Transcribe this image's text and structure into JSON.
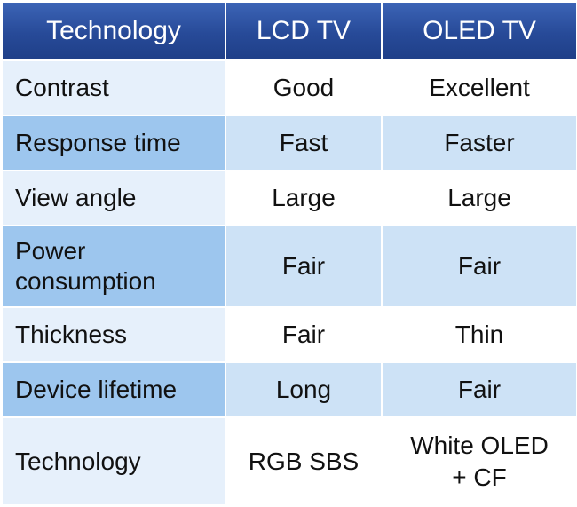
{
  "table": {
    "headers": [
      "Technology",
      "LCD TV",
      "OLED TV"
    ],
    "rows": [
      {
        "label": "Contrast",
        "lcd": "Good",
        "oled": "Excellent"
      },
      {
        "label": "Response time",
        "lcd": "Fast",
        "oled": "Faster"
      },
      {
        "label": "View angle",
        "lcd": "Large",
        "oled": "Large"
      },
      {
        "label_line1": "Power",
        "label_line2": "consumption",
        "lcd": "Fair",
        "oled": "Fair"
      },
      {
        "label": "Thickness",
        "lcd": "Fair",
        "oled": "Thin"
      },
      {
        "label": "Device lifetime",
        "lcd": "Long",
        "oled": "Fair"
      },
      {
        "label": "Technology",
        "lcd": "RGB SBS",
        "oled_line1": "White OLED",
        "oled_line2": "+ CF"
      }
    ]
  },
  "colors": {
    "header_bg": "#274a98",
    "header_text": "#ffffff",
    "row_label_light": "#e6f0fb",
    "row_label_dark": "#9dc6ee",
    "row_value_shaded": "#cde2f6",
    "row_value_plain": "#ffffff"
  }
}
